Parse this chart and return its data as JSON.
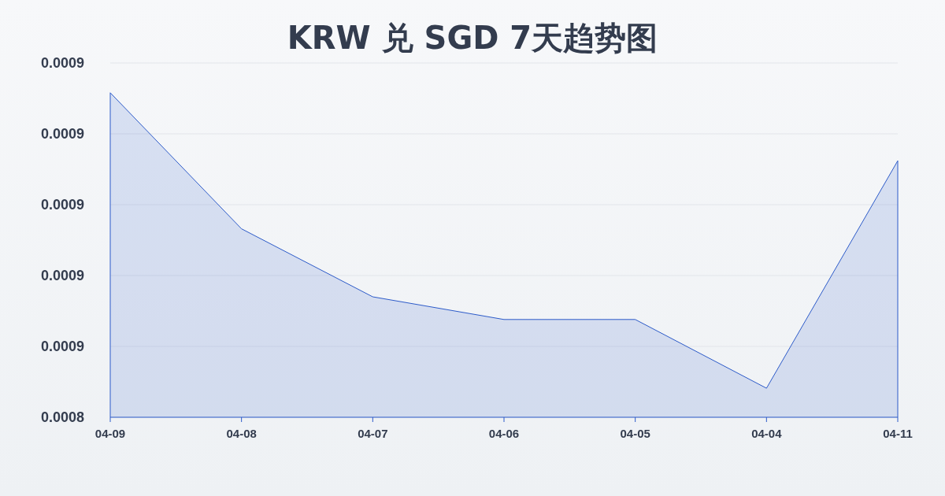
{
  "chart_data": {
    "type": "area",
    "title": "KRW 兑 SGD 7天趋势图",
    "categories": [
      "04-09",
      "04-08",
      "04-07",
      "04-06",
      "04-05",
      "04-04",
      "04-11"
    ],
    "series": [
      {
        "color": "#2d5bc9",
        "values": [
          0.0008858,
          0.0008666,
          0.000857,
          0.0008538,
          0.0008538,
          0.0008441,
          0.0008762
        ]
      }
    ],
    "ylim": [
      0.00084,
      0.00089
    ],
    "yticks": [
      {
        "value": 0.00084,
        "label": "0.0008"
      },
      {
        "value": 0.00085,
        "label": "0.0009"
      },
      {
        "value": 0.00086,
        "label": "0.0009"
      },
      {
        "value": 0.00087,
        "label": "0.0009"
      },
      {
        "value": 0.00088,
        "label": "0.0009"
      },
      {
        "value": 0.00089,
        "label": "0.0009"
      }
    ],
    "grid": "y"
  }
}
